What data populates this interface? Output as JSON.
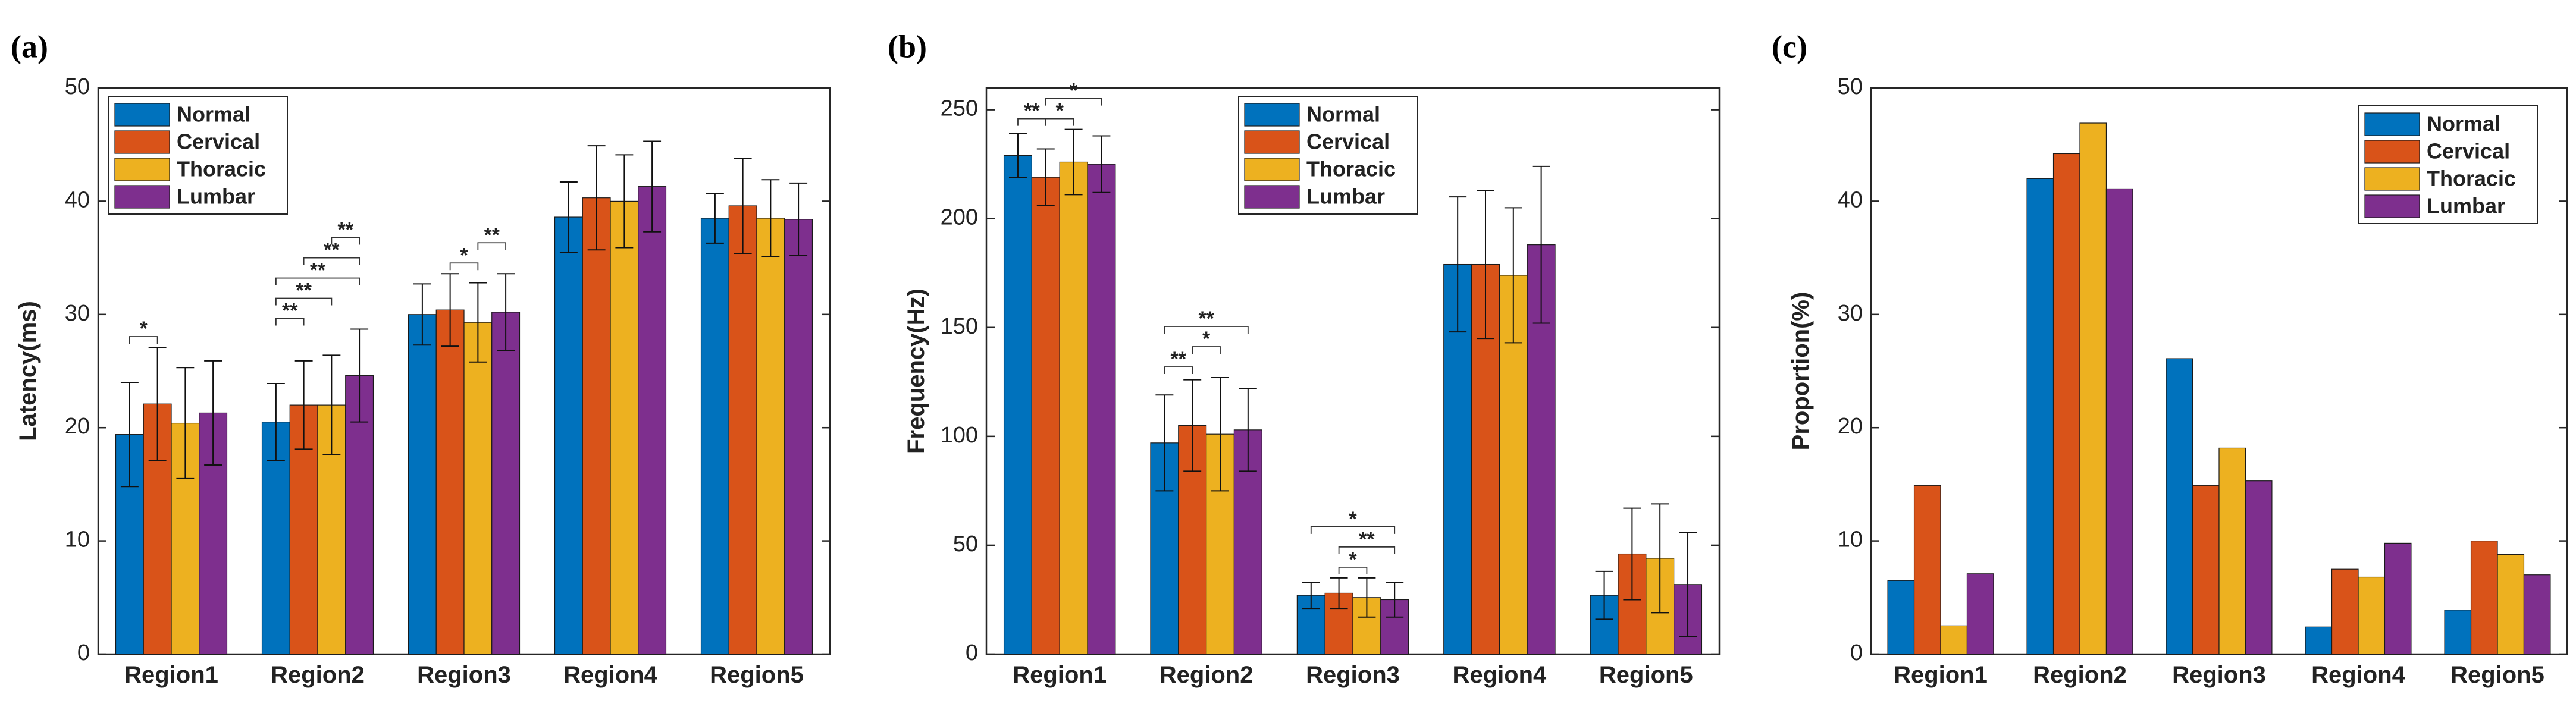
{
  "colors": {
    "Normal": "#0072BD",
    "Cervical": "#D95319",
    "Thoracic": "#EDB120",
    "Lumbar": "#7E2F8E"
  },
  "chart_data": [
    {
      "panel_label": "(a)",
      "type": "bar",
      "title": "",
      "ylabel": "Latency(ms)",
      "xlabel": "",
      "ylim": [
        0,
        50
      ],
      "yticks": [
        "0",
        "10",
        "20",
        "30",
        "40",
        "50"
      ],
      "categories": [
        "Region1",
        "Region2",
        "Region3",
        "Region4",
        "Region5"
      ],
      "legend_position": "top-left",
      "series": [
        {
          "name": "Normal",
          "values": [
            19.4,
            20.5,
            30.0,
            38.6,
            38.5
          ],
          "errors": [
            4.6,
            3.4,
            2.7,
            3.1,
            2.2
          ]
        },
        {
          "name": "Cervical",
          "values": [
            22.1,
            22.0,
            30.4,
            40.3,
            39.6
          ],
          "errors": [
            5.0,
            3.9,
            3.2,
            4.6,
            4.2
          ]
        },
        {
          "name": "Thoracic",
          "values": [
            20.4,
            22.0,
            29.3,
            40.0,
            38.5
          ],
          "errors": [
            4.9,
            4.4,
            3.5,
            4.1,
            3.4
          ]
        },
        {
          "name": "Lumbar",
          "values": [
            21.3,
            24.6,
            30.2,
            41.3,
            38.4
          ],
          "errors": [
            4.6,
            4.1,
            3.4,
            4.0,
            3.2
          ]
        }
      ],
      "significance": [
        {
          "category": 0,
          "from": 0,
          "to": 1,
          "label": "*",
          "level": 1
        },
        {
          "category": 1,
          "from": 0,
          "to": 1,
          "label": "**",
          "level": 1
        },
        {
          "category": 1,
          "from": 0,
          "to": 2,
          "label": "**",
          "level": 2
        },
        {
          "category": 1,
          "from": 0,
          "to": 3,
          "label": "**",
          "level": 3
        },
        {
          "category": 1,
          "from": 1,
          "to": 3,
          "label": "**",
          "level": 4
        },
        {
          "category": 1,
          "from": 2,
          "to": 3,
          "label": "**",
          "level": 5
        },
        {
          "category": 2,
          "from": 1,
          "to": 2,
          "label": "*",
          "level": 1
        },
        {
          "category": 2,
          "from": 2,
          "to": 3,
          "label": "**",
          "level": 2
        }
      ]
    },
    {
      "panel_label": "(b)",
      "type": "bar",
      "title": "",
      "ylabel": "Frequency(Hz)",
      "xlabel": "",
      "ylim": [
        0,
        260
      ],
      "yticks": [
        "0",
        "50",
        "100",
        "150",
        "200",
        "250"
      ],
      "categories": [
        "Region1",
        "Region2",
        "Region3",
        "Region4",
        "Region5"
      ],
      "legend_position": "top-right",
      "series": [
        {
          "name": "Normal",
          "values": [
            229,
            97,
            27,
            179,
            27
          ],
          "errors": [
            10,
            22,
            6,
            31,
            11
          ]
        },
        {
          "name": "Cervical",
          "values": [
            219,
            105,
            28,
            179,
            46
          ],
          "errors": [
            13,
            21,
            7,
            34,
            21
          ]
        },
        {
          "name": "Thoracic",
          "values": [
            226,
            101,
            26,
            174,
            44
          ],
          "errors": [
            15,
            26,
            9,
            31,
            25
          ]
        },
        {
          "name": "Lumbar",
          "values": [
            225,
            103,
            25,
            188,
            32
          ],
          "errors": [
            13,
            19,
            8,
            36,
            24
          ]
        }
      ],
      "significance": [
        {
          "category": 0,
          "from": 0,
          "to": 1,
          "label": "**",
          "level": 1
        },
        {
          "category": 0,
          "from": 1,
          "to": 2,
          "label": "*",
          "level": 1
        },
        {
          "category": 0,
          "from": 1,
          "to": 3,
          "label": "*",
          "level": 2
        },
        {
          "category": 1,
          "from": 0,
          "to": 1,
          "label": "**",
          "level": 1
        },
        {
          "category": 1,
          "from": 1,
          "to": 2,
          "label": "*",
          "level": 2
        },
        {
          "category": 1,
          "from": 0,
          "to": 3,
          "label": "**",
          "level": 3
        },
        {
          "category": 2,
          "from": 1,
          "to": 2,
          "label": "*",
          "level": 1
        },
        {
          "category": 2,
          "from": 1,
          "to": 3,
          "label": "**",
          "level": 2
        },
        {
          "category": 2,
          "from": 0,
          "to": 3,
          "label": "*",
          "level": 3
        }
      ]
    },
    {
      "panel_label": "(c)",
      "type": "bar",
      "title": "",
      "ylabel": "Proportion(%)",
      "xlabel": "",
      "ylim": [
        0,
        50
      ],
      "yticks": [
        "0",
        "10",
        "20",
        "30",
        "40",
        "50"
      ],
      "categories": [
        "Region1",
        "Region2",
        "Region3",
        "Region4",
        "Region5"
      ],
      "legend_position": "top-right",
      "series": [
        {
          "name": "Normal",
          "values": [
            6.5,
            42.0,
            26.1,
            2.4,
            3.9
          ]
        },
        {
          "name": "Cervical",
          "values": [
            14.9,
            44.2,
            14.9,
            7.5,
            10.0
          ]
        },
        {
          "name": "Thoracic",
          "values": [
            2.5,
            46.9,
            18.2,
            6.8,
            8.8
          ]
        },
        {
          "name": "Lumbar",
          "values": [
            7.1,
            41.1,
            15.3,
            9.8,
            7.0
          ]
        }
      ],
      "significance": []
    }
  ]
}
